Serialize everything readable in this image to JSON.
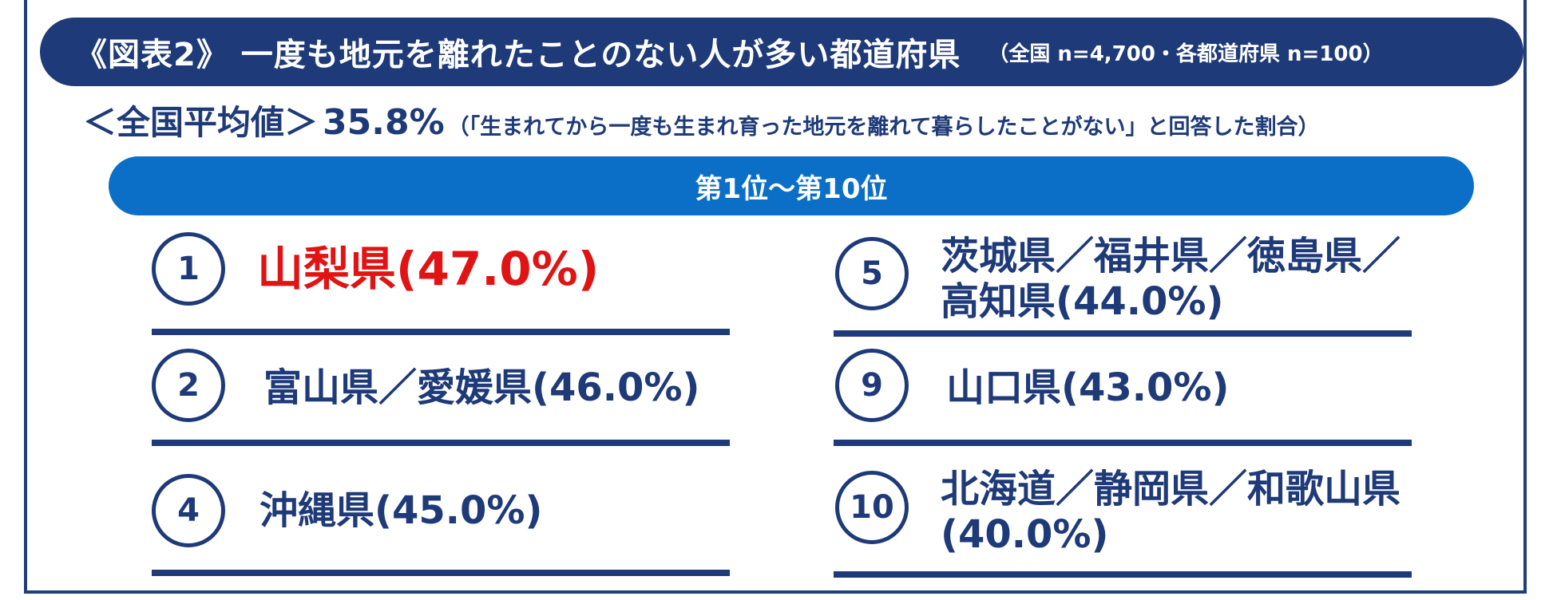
{
  "title": {
    "main": "《図表2》 一度も地元を離れたことのない人が多い都道府県",
    "sub": "（全国 n=4,700・各都道府県 n=100）"
  },
  "average": {
    "label": "＜全国平均値＞",
    "value": "35.8%",
    "note": "（「生まれてから一度も生まれ育った地元を離れて暮らしたことがない」と回答した割合）"
  },
  "rank_header": "第1位～第10位",
  "entries": [
    {
      "rank": "1",
      "line1": "山梨県(47.0%)",
      "line2": ""
    },
    {
      "rank": "2",
      "line1": "富山県／愛媛県(46.0%)",
      "line2": ""
    },
    {
      "rank": "4",
      "line1": "沖縄県(45.0%)",
      "line2": ""
    },
    {
      "rank": "5",
      "line1": "茨城県／福井県／徳島県／",
      "line2": "高知県(44.0%)"
    },
    {
      "rank": "9",
      "line1": "山口県(43.0%)",
      "line2": ""
    },
    {
      "rank": "10",
      "line1": "北海道／静岡県／和歌山県",
      "line2": "(40.0%)"
    }
  ],
  "colors": {
    "navy": "#1e3a78",
    "blue": "#0b6fc7",
    "highlight_red": "#e01414"
  }
}
